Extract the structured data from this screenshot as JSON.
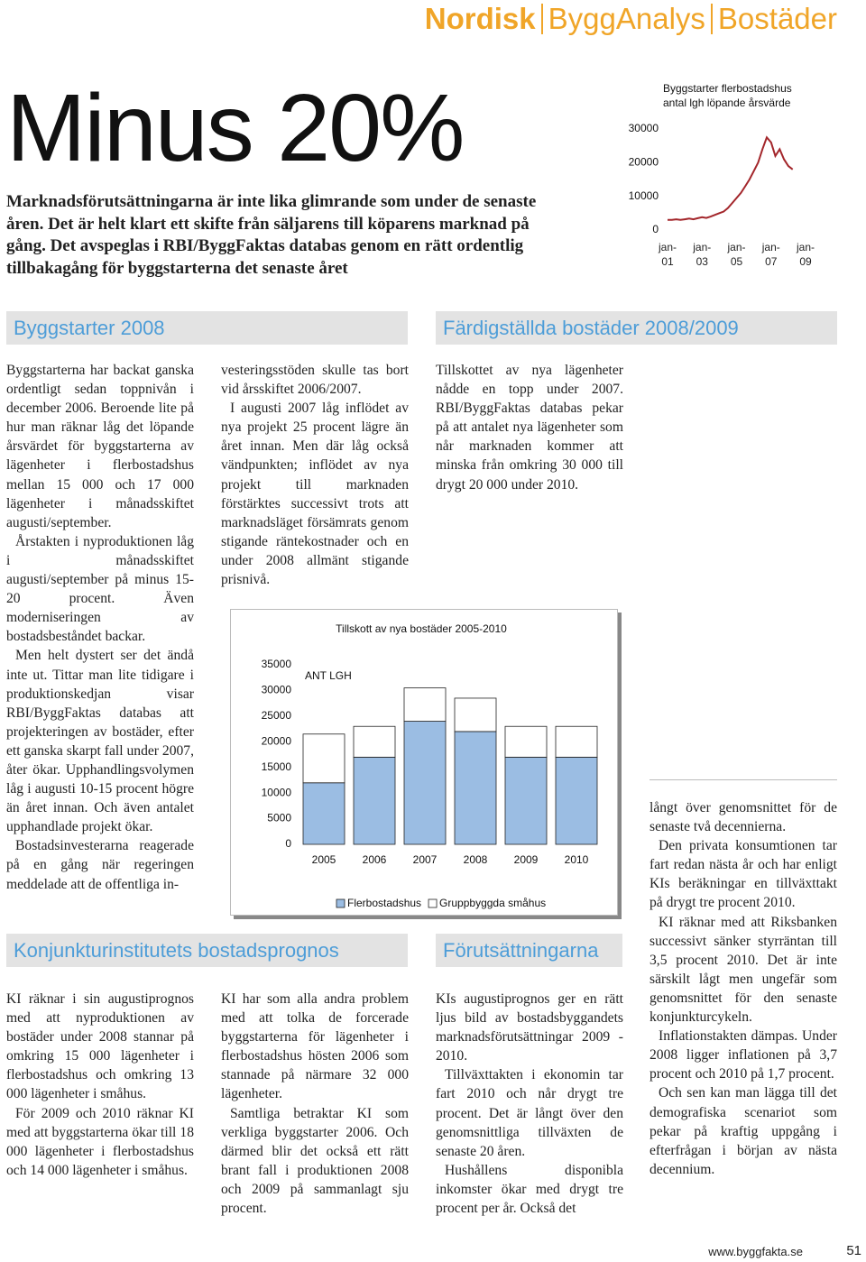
{
  "header": {
    "brand": "Nordisk",
    "series": "ByggAnalys",
    "section": "Bostäder"
  },
  "title": "Minus 20%",
  "lead": "Marknadsförutsättningarna är inte lika glimrande som under de senaste åren. Det är helt klart ett skifte från säljarens till köparens marknad på gång. Det avspeglas i RBI/ByggFaktas databas genom en rätt ordentlig tillbakagång för byggstarterna det senaste året",
  "headings": [
    "Byggstarter 2008",
    "Färdigställda bostäder 2008/2009",
    "Konjunkturinstitutets bostadsprognos",
    "Förutsättningarna"
  ],
  "columns": [
    [
      "Byggstarterna har backat ganska ordentligt sedan toppnivån i december 2006. Beroende lite på hur man räknar låg det löpande årsvärdet för byggstarterna av lägenheter i flerbostadshus mellan 15 000 och 17 000 lägenheter i månadsskiftet augusti/september.",
      "Årstakten i nyproduktionen låg i månadsskiftet augusti/september på minus 15-20 procent. Även moderniseringen av bostadsbeståndet backar.",
      "Men helt dystert ser det ändå inte ut. Tittar man lite tidigare i produktionskedjan visar RBI/ByggFaktas databas att projekteringen av bostäder, efter ett ganska skarpt fall under 2007, åter ökar. Upphandlingsvolymen låg i augusti 10-15 procent högre än året innan. Och även antalet upphandlade projekt ökar.",
      "Bostadsinvesterarna reagerade på en gång när regeringen meddelade att de offentliga in-"
    ],
    [
      "vesteringsstöden skulle tas bort vid årsskiftet 2006/2007.",
      "I augusti 2007 låg inflödet av nya projekt 25 procent lägre än året innan. Men där låg också vändpunkten; inflödet av nya projekt till marknaden förstärktes successivt trots att marknadsläget försämrats genom stigande räntekostnader och en under 2008 allmänt stigande prisnivå."
    ],
    [
      "Tillskottet av nya lägenheter nådde en topp under 2007. RBI/ByggFaktas databas pekar på att antalet nya lägenheter som når marknaden kommer att minska från omkring 30 000 till drygt 20 000 under 2010."
    ],
    [
      "KI räknar i sin augustiprognos med att nyproduktionen av bostäder under 2008 stannar på omkring 15 000 lägenheter i flerbostadshus och omkring 13 000 lägenheter i småhus.",
      "För 2009 och 2010 räknar KI med att byggstarterna ökar till 18 000 lägenheter i flerbostadshus och 14 000 lägenheter i småhus."
    ],
    [
      "KI har som alla andra problem med att tolka de forcerade byggstarterna för lägenheter i flerbostadshus hösten 2006 som stannade på närmare 32 000 lägenheter.",
      "Samtliga betraktar KI som verkliga byggstarter 2006. Och därmed blir det också ett rätt brant fall i produktionen 2008 och 2009 på sammanlagt sju procent."
    ],
    [
      "KIs augustiprognos ger en rätt ljus bild av bostadsbyggandets marknadsförutsättningar 2009 - 2010.",
      "Tillväxttakten i ekonomin tar fart 2010 och når drygt tre procent. Det är långt över den genomsnittliga tillväxten de senaste 20 åren.",
      "Hushållens disponibla inkomster ökar med drygt tre procent per år. Också det"
    ],
    [
      "långt över genomsnittet för de senaste två decennierna.",
      "Den privata konsumtionen tar fart redan nästa år och har enligt KIs beräkningar en tillväxttakt på drygt tre procent 2010.",
      "KI räknar med att Riksbanken successivt sänker styrräntan till 3,5 procent 2010. Det är inte särskilt lågt men ungefär som genomsnittet för den senaste konjunkturcykeln.",
      "Inflationstakten dämpas. Under 2008 ligger inflationen på 3,7 procent och 2010 på 1,7 procent.",
      "Och sen kan man lägga till det demografiska scenariot som pekar på kraftig uppgång i efterfrågan i början av nästa decennium."
    ]
  ],
  "chart_data": [
    {
      "type": "line",
      "title": "Byggstarter flerbostadshus",
      "subtitle": "antal lgh löpande årsvärde",
      "categories": [
        "jan-\n01",
        null,
        null,
        null,
        null,
        null,
        null,
        null,
        "jan-\n03",
        null,
        null,
        null,
        null,
        null,
        null,
        null,
        "jan-\n05",
        null,
        null,
        null,
        null,
        null,
        null,
        null,
        "jan-\n07",
        null,
        null,
        null,
        null,
        null,
        null,
        null,
        "jan-\n09"
      ],
      "values": [
        3000,
        3000,
        3200,
        3000,
        3200,
        3400,
        3200,
        3500,
        3800,
        3600,
        4000,
        4500,
        5000,
        5500,
        6500,
        8000,
        9500,
        11000,
        13000,
        15000,
        17500,
        20000,
        24000,
        27500,
        26000,
        22000,
        24000,
        21000,
        19000,
        18000,
        null,
        null,
        null
      ],
      "color": "#a3262b",
      "ylim": [
        0,
        30000
      ],
      "yticks": [
        0,
        10000,
        20000,
        30000
      ],
      "grid": false
    },
    {
      "type": "bar",
      "title": "Tillskott av nya bostäder 2005-2010",
      "ylabel": "ANT LGH",
      "categories": [
        "2005",
        "2006",
        "2007",
        "2008",
        "2009",
        "2010"
      ],
      "series": [
        {
          "name": "Flerbostadshus",
          "color": "#9bbde3",
          "values": [
            12000,
            17000,
            24000,
            22000,
            17000,
            17000
          ]
        },
        {
          "name": "Gruppbyggda småhus",
          "color": "#ffffff",
          "values": [
            9500,
            6000,
            6500,
            6500,
            6000,
            6000
          ]
        }
      ],
      "stacked": true,
      "ylim": [
        0,
        35000
      ],
      "yticks": [
        0,
        5000,
        10000,
        15000,
        20000,
        25000,
        30000,
        35000
      ],
      "grid": false,
      "legend": "bottom"
    }
  ],
  "footer": {
    "url": "www.byggfakta.se",
    "page": 51
  }
}
